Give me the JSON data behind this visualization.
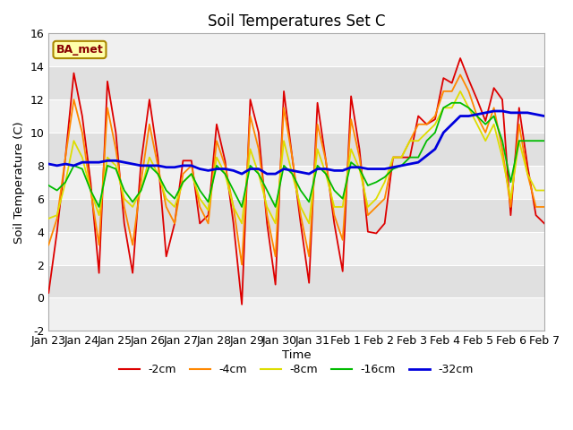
{
  "title": "Soil Temperatures Set C",
  "xlabel": "Time",
  "ylabel": "Soil Temperature (C)",
  "ylim": [
    -2,
    16
  ],
  "yticks": [
    -2,
    0,
    2,
    4,
    6,
    8,
    10,
    12,
    14,
    16
  ],
  "annotation_text": "BA_met",
  "line_colors": {
    "-2cm": "#dd0000",
    "-4cm": "#ff8800",
    "-8cm": "#dddd00",
    "-16cm": "#00bb00",
    "-32cm": "#0000dd"
  },
  "x_tick_labels": [
    "Jan 23",
    "Jan 24",
    "Jan 25",
    "Jan 26",
    "Jan 27",
    "Jan 28",
    "Jan 29",
    "Jan 30",
    "Jan 31",
    "Feb 1",
    "Feb 2",
    "Feb 3",
    "Feb 4",
    "Feb 5",
    "Feb 6",
    "Feb 7"
  ],
  "band_colors": [
    "#f0f0f0",
    "#e0e0e0"
  ],
  "depth_2cm": [
    0.3,
    4.0,
    8.5,
    13.6,
    11.0,
    7.0,
    1.5,
    13.1,
    10.0,
    4.5,
    1.5,
    8.2,
    12.0,
    8.5,
    2.5,
    4.5,
    8.3,
    8.3,
    4.5,
    5.0,
    10.5,
    8.3,
    4.5,
    -0.4,
    12.0,
    10.0,
    4.5,
    0.8,
    12.5,
    8.5,
    4.5,
    0.9,
    11.8,
    8.3,
    4.5,
    1.6,
    12.2,
    9.0,
    4.0,
    3.9,
    4.5,
    8.5,
    8.5,
    8.5,
    11.0,
    10.5,
    10.8,
    13.3,
    13.0,
    14.5,
    13.2,
    12.0,
    10.7,
    12.7,
    12.0,
    5.0,
    11.5,
    8.0,
    5.0,
    4.5
  ],
  "depth_4cm": [
    3.2,
    4.8,
    8.5,
    12.0,
    10.0,
    6.5,
    3.2,
    11.5,
    9.0,
    5.5,
    3.2,
    7.0,
    10.5,
    8.0,
    5.5,
    4.5,
    7.5,
    8.0,
    5.5,
    4.5,
    9.5,
    8.0,
    5.5,
    2.0,
    11.0,
    9.0,
    5.0,
    2.5,
    11.5,
    8.5,
    5.0,
    2.5,
    10.5,
    8.3,
    5.0,
    3.5,
    10.8,
    8.5,
    5.0,
    5.5,
    6.0,
    8.5,
    8.5,
    9.5,
    10.5,
    10.5,
    11.0,
    12.5,
    12.5,
    13.5,
    12.5,
    11.0,
    10.0,
    11.5,
    9.0,
    5.5,
    10.5,
    7.5,
    5.5,
    5.5
  ],
  "depth_8cm": [
    4.8,
    5.0,
    7.0,
    9.5,
    8.5,
    6.5,
    5.0,
    8.5,
    8.0,
    6.0,
    5.5,
    6.5,
    8.5,
    7.5,
    6.0,
    5.5,
    7.0,
    7.5,
    6.0,
    5.3,
    8.5,
    7.5,
    5.5,
    4.5,
    9.0,
    7.5,
    5.5,
    4.5,
    9.5,
    7.5,
    5.5,
    4.5,
    9.0,
    7.5,
    5.5,
    5.5,
    9.0,
    7.8,
    5.5,
    6.0,
    7.0,
    8.5,
    8.5,
    9.5,
    9.5,
    10.0,
    10.5,
    11.5,
    11.5,
    12.5,
    11.5,
    10.5,
    9.5,
    10.5,
    8.5,
    6.0,
    9.5,
    7.5,
    6.5,
    6.5
  ],
  "depth_16cm": [
    6.8,
    6.5,
    7.0,
    8.0,
    7.8,
    6.5,
    5.5,
    8.0,
    7.8,
    6.5,
    5.8,
    6.5,
    8.0,
    7.5,
    6.5,
    6.0,
    7.0,
    7.5,
    6.5,
    5.8,
    8.0,
    7.5,
    6.5,
    5.5,
    8.0,
    7.5,
    6.5,
    5.5,
    8.0,
    7.5,
    6.5,
    5.8,
    8.0,
    7.5,
    6.5,
    6.0,
    8.2,
    7.8,
    6.8,
    7.0,
    7.3,
    7.8,
    8.0,
    8.5,
    8.5,
    9.5,
    10.0,
    11.5,
    11.8,
    11.8,
    11.5,
    11.0,
    10.5,
    11.0,
    9.5,
    7.0,
    9.5,
    9.5,
    9.5,
    9.5
  ],
  "depth_32cm": [
    8.1,
    8.0,
    8.1,
    8.0,
    8.2,
    8.2,
    8.2,
    8.3,
    8.3,
    8.2,
    8.1,
    8.0,
    8.0,
    8.0,
    7.9,
    7.9,
    8.0,
    8.0,
    7.8,
    7.7,
    7.8,
    7.8,
    7.7,
    7.5,
    7.8,
    7.8,
    7.5,
    7.5,
    7.8,
    7.7,
    7.6,
    7.5,
    7.8,
    7.8,
    7.7,
    7.7,
    7.9,
    7.9,
    7.8,
    7.8,
    7.8,
    7.9,
    8.0,
    8.1,
    8.2,
    8.6,
    9.0,
    10.0,
    10.5,
    11.0,
    11.0,
    11.1,
    11.2,
    11.3,
    11.3,
    11.2,
    11.2,
    11.2,
    11.1,
    11.0
  ]
}
